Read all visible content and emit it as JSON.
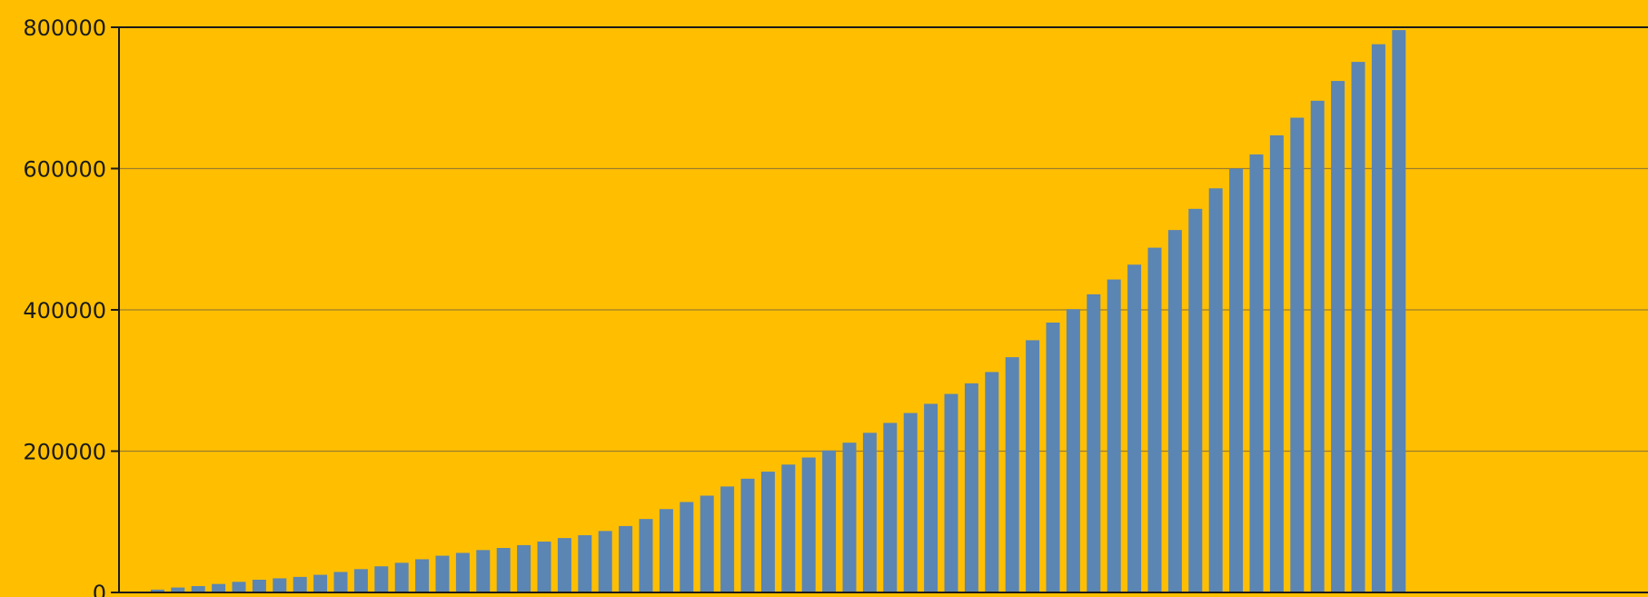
{
  "colors": {
    "background": "#FFBF00",
    "bar": "#5B85B3",
    "axis": "#1a1a1a",
    "grid": "#9a7d2e"
  },
  "chart_data": {
    "type": "bar",
    "title": "",
    "xlabel": "",
    "ylabel": "",
    "ylim": [
      0,
      800000
    ],
    "yticks": [
      "0",
      "200000",
      "400000",
      "600000",
      "800000"
    ],
    "grid": true,
    "values": [
      0,
      4000,
      7000,
      9000,
      12000,
      15000,
      18000,
      20000,
      22000,
      25000,
      29000,
      33000,
      37000,
      42000,
      47000,
      52000,
      56000,
      60000,
      63000,
      67000,
      72000,
      77000,
      81000,
      87000,
      94000,
      104000,
      118000,
      128000,
      137000,
      150000,
      161000,
      171000,
      181000,
      191000,
      201000,
      212000,
      226000,
      240000,
      254000,
      267000,
      281000,
      296000,
      312000,
      333000,
      357000,
      382000,
      401000,
      422000,
      443000,
      464000,
      488000,
      513000,
      543000,
      572000,
      600000,
      620000,
      647000,
      672000,
      696000,
      724000,
      751000,
      776000,
      796000
    ]
  }
}
